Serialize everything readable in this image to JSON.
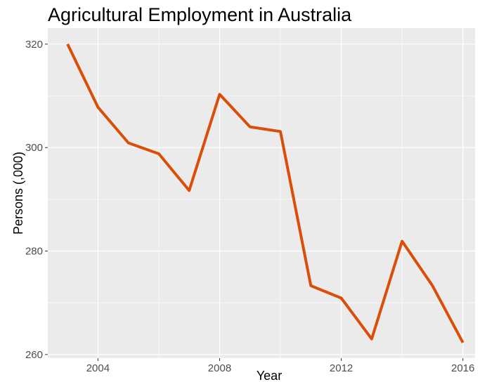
{
  "chart_data": {
    "type": "line",
    "title": "Agricultural Employment in Australia",
    "xlabel": "Year",
    "ylabel": "Persons (,000)",
    "x": [
      2003,
      2004,
      2005,
      2006,
      2007,
      2008,
      2009,
      2010,
      2011,
      2012,
      2013,
      2014,
      2015,
      2016
    ],
    "series": [
      {
        "values": [
          320,
          307.8,
          300.9,
          298.8,
          291.7,
          310.3,
          304.0,
          303.1,
          273.3,
          270.9,
          263.0,
          281.9,
          273.3,
          262.3
        ]
      }
    ],
    "x_ticks": [
      "2004",
      "2008",
      "2012",
      "2016"
    ],
    "y_ticks": [
      "260",
      "280",
      "300",
      "320"
    ],
    "xlim": [
      2002.35,
      2016.4
    ],
    "ylim": [
      259.3,
      323.1
    ],
    "grid": true,
    "legend": "none",
    "colors": {
      "line": "#d94f0a",
      "panel_background": "#ebebeb",
      "grid": "#ffffff"
    }
  }
}
